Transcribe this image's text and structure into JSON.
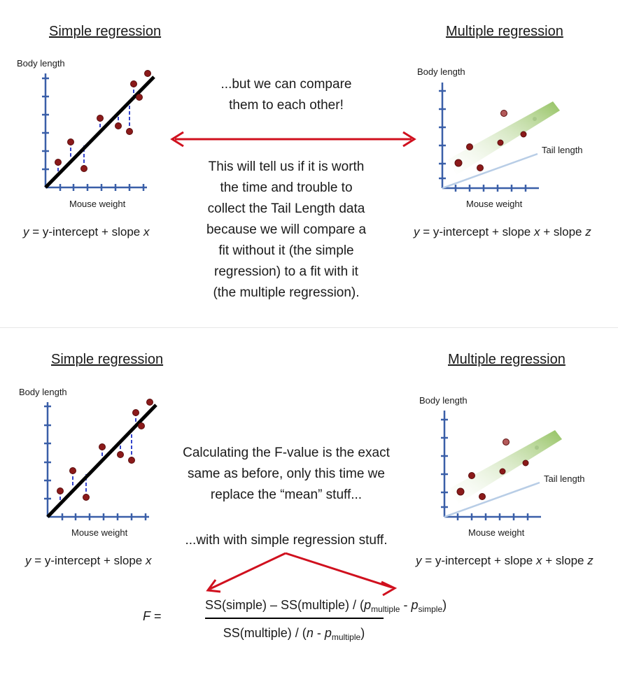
{
  "top": {
    "simple_heading": "Simple regression",
    "multiple_heading": "Multiple regression",
    "simple_y_label": "Body length",
    "simple_x_label": "Mouse weight",
    "multiple_y_label": "Body length",
    "multiple_x_label": "Mouse weight",
    "multiple_z_label": "Tail length",
    "simple_equation": {
      "y": "y",
      "mid": " = y-intercept + slope ",
      "x": "x"
    },
    "multiple_equation": {
      "y": "y",
      "mid": " = y-intercept + slope ",
      "x": "x",
      "mid2": " + slope ",
      "z": "z"
    },
    "compare_lines": [
      "...but we can compare",
      "them to each other!"
    ],
    "explain_lines": [
      "This will tell us if it is worth",
      "the time and trouble to",
      "collect the Tail Length data",
      "because we will compare a",
      "fit without it (the simple",
      "regression) to a fit with it",
      "(the multiple regression)."
    ]
  },
  "bottom": {
    "simple_heading": "Simple regression",
    "multiple_heading": "Multiple regression",
    "simple_y_label": "Body length",
    "simple_x_label": "Mouse weight",
    "multiple_y_label": "Body length",
    "multiple_x_label": "Mouse weight",
    "multiple_z_label": "Tail length",
    "simple_equation": {
      "y": "y",
      "mid": " = y-intercept + slope ",
      "x": "x"
    },
    "multiple_equation": {
      "y": "y",
      "mid": " = y-intercept + slope ",
      "x": "x",
      "mid2": " + slope ",
      "z": "z"
    },
    "calc_lines": [
      "Calculating the F-value is the exact",
      "same as before, only this time we",
      "replace the “mean” stuff..."
    ],
    "with_line": "...with with simple regression stuff.",
    "formula": {
      "f": "F",
      "eq": " =",
      "num_a": "SS(simple) – SS(multiple) / (",
      "p1": "p",
      "p1_sub": "multiple",
      "minus": " - ",
      "p2": "p",
      "p2_sub": "simple",
      "close": ")",
      "den_a": "SS(multiple) / (",
      "n": "n",
      "den_minus": " - ",
      "p3": "p",
      "p3_sub": "multiple",
      "den_close": ")"
    }
  },
  "colors": {
    "arrow": "#d0101e",
    "point": "#8b1a1a",
    "residual": "#3344cc",
    "axis": "#3a5fa8",
    "plane": "#8fbf5a",
    "tail_axis": "#b8cde6"
  }
}
